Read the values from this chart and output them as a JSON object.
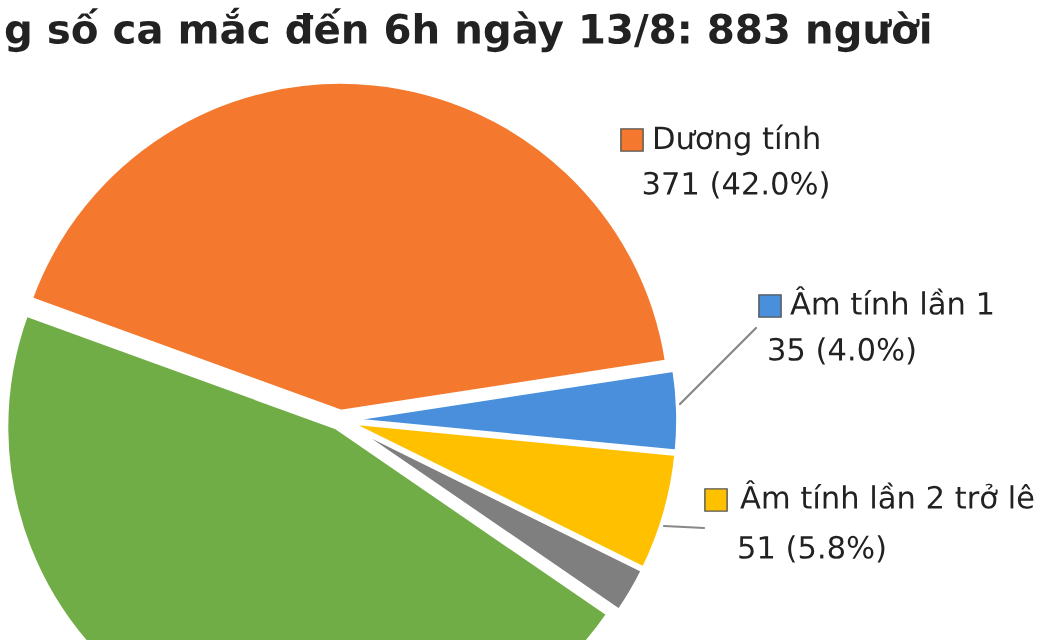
{
  "chart_data": {
    "type": "pie",
    "title": "g số ca mắc đến 6h ngày 13/8: 883 người",
    "categories": [
      "Dương tính",
      "Âm tính lần 1",
      "Âm tính lần 2 trở lê",
      null,
      null
    ],
    "values": [
      371,
      35,
      51,
      20,
      406
    ],
    "value_labels": [
      "371 (42.0%)",
      "35 (4.0%)",
      "51 (5.8%)",
      null,
      null
    ],
    "colors": [
      "#f4792e",
      "#4a8fdc",
      "#ffc000",
      "#7f7f7f",
      "#70ad47"
    ],
    "legend": "right"
  }
}
